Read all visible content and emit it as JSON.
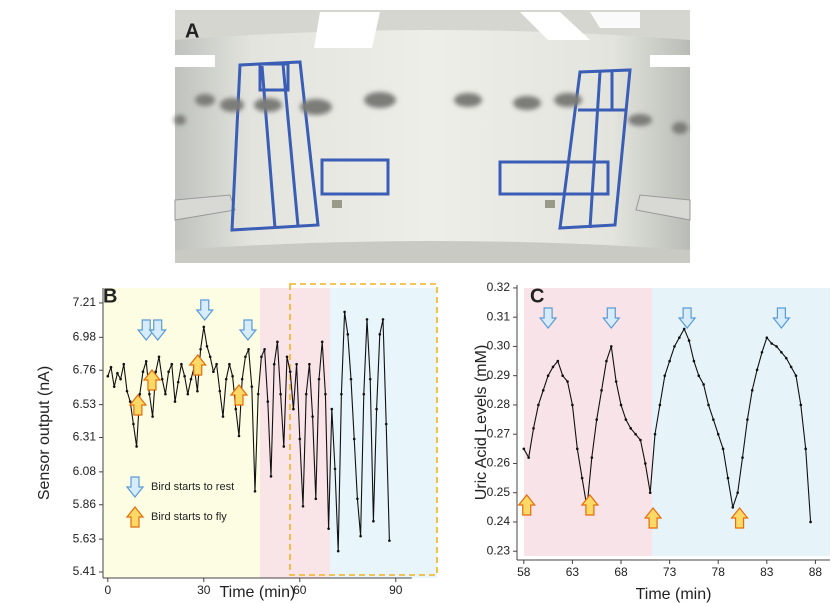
{
  "photo_label": "A",
  "chart_data": [
    {
      "type": "line",
      "panel_label": "B",
      "ylabel": "Sensor output (nA)",
      "xlabel": "Time (min)",
      "xlim": [
        -1.5,
        95
      ],
      "xticks": [
        0,
        30,
        60,
        90
      ],
      "ylim": [
        5.37,
        7.31
      ],
      "yticks": [
        7.21,
        6.98,
        6.76,
        6.53,
        6.31,
        6.08,
        5.86,
        5.63,
        5.41
      ],
      "x": [
        0,
        1,
        2,
        3,
        4,
        5,
        6,
        7,
        8,
        9,
        10,
        11,
        12,
        13,
        14,
        15,
        16,
        17,
        18,
        19,
        20,
        21,
        22,
        23,
        24,
        25,
        26,
        27,
        28,
        29,
        30,
        31,
        32,
        33,
        34,
        35,
        36,
        37,
        38,
        39,
        40,
        41,
        42,
        43,
        44,
        45,
        46,
        47,
        48,
        49,
        50,
        51,
        52,
        53,
        54,
        55,
        56,
        57,
        58,
        59,
        60,
        61,
        62,
        63,
        64,
        65,
        66,
        67,
        68,
        69,
        70,
        71,
        72,
        73,
        74,
        75,
        76,
        77,
        78,
        79,
        80,
        81,
        82,
        83,
        84,
        85,
        86,
        87,
        88
      ],
      "color": "#111111",
      "values": [
        6.72,
        6.78,
        6.65,
        6.74,
        6.7,
        6.8,
        6.62,
        6.55,
        6.4,
        6.25,
        6.6,
        6.75,
        6.82,
        6.6,
        6.45,
        6.75,
        6.85,
        6.7,
        6.6,
        6.75,
        6.8,
        6.55,
        6.68,
        6.8,
        6.72,
        6.6,
        6.7,
        6.78,
        6.62,
        6.9,
        7.05,
        6.92,
        6.85,
        6.75,
        6.8,
        6.62,
        6.45,
        6.7,
        6.8,
        6.72,
        6.5,
        6.32,
        6.7,
        6.85,
        6.9,
        6.65,
        5.95,
        6.6,
        6.85,
        6.9,
        6.55,
        6.05,
        6.8,
        6.95,
        6.6,
        6.25,
        6.85,
        6.75,
        6.5,
        6.8,
        6.3,
        5.85,
        6.6,
        6.8,
        6.45,
        5.9,
        6.7,
        6.95,
        6.6,
        5.7,
        6.5,
        6.1,
        5.55,
        6.6,
        7.15,
        7.0,
        6.7,
        6.3,
        5.9,
        5.65,
        6.6,
        7.1,
        6.7,
        5.75,
        6.5,
        7.0,
        7.1,
        6.4,
        5.62
      ],
      "arrows": [
        {
          "name": "Bird starts to rest",
          "color": "#5b9bd5",
          "x": [
            12,
            15.6,
            30.3,
            43.8
          ]
        },
        {
          "name": "Bird starts to fly",
          "color": "#e46c0a",
          "x": [
            9.4,
            13.8,
            28.1,
            41
          ]
        }
      ]
    },
    {
      "type": "line",
      "panel_label": "C",
      "ylabel": "Uric Acid Levels (mM)",
      "xlabel": "Time (min)",
      "xlim": [
        57.3,
        89.5
      ],
      "xticks": [
        58,
        63,
        68,
        73,
        78,
        83,
        88
      ],
      "ylim": [
        0.227,
        0.321
      ],
      "yticks": [
        0.32,
        0.31,
        {
          "value": 0.3,
          "label": "0.30"
        },
        0.29,
        0.28,
        0.27,
        0.26,
        0.25,
        0.24,
        0.23
      ],
      "x": [
        58,
        58.5,
        59,
        59.5,
        60,
        60.5,
        61,
        61.5,
        62,
        62.5,
        63,
        63.5,
        64,
        64.5,
        65,
        65.5,
        66,
        66.5,
        67,
        67.5,
        68,
        68.5,
        69,
        69.5,
        70,
        70.5,
        71,
        71.5,
        72,
        72.5,
        73,
        73.5,
        74,
        74.5,
        75,
        75.5,
        76,
        76.5,
        77,
        77.5,
        78,
        78.5,
        79,
        79.5,
        80,
        80.5,
        81,
        81.5,
        82,
        82.5,
        83,
        83.5,
        84,
        84.5,
        85,
        85.5,
        86,
        86.5,
        87,
        87.5
      ],
      "color": "#111111",
      "values": [
        0.265,
        0.262,
        0.272,
        0.28,
        0.285,
        0.29,
        0.293,
        0.295,
        0.29,
        0.288,
        0.28,
        0.265,
        0.255,
        0.245,
        0.262,
        0.275,
        0.285,
        0.295,
        0.3,
        0.288,
        0.28,
        0.275,
        0.272,
        0.27,
        0.268,
        0.26,
        0.25,
        0.27,
        0.28,
        0.29,
        0.295,
        0.3,
        0.303,
        0.306,
        0.302,
        0.295,
        0.29,
        0.287,
        0.28,
        0.275,
        0.27,
        0.265,
        0.255,
        0.245,
        0.25,
        0.262,
        0.275,
        0.285,
        0.292,
        0.298,
        0.303,
        0.301,
        0.3,
        0.298,
        0.296,
        0.293,
        0.29,
        0.28,
        0.265,
        0.24
      ],
      "arrows": [
        {
          "color": "#5b9bd5",
          "x": [
            60.5,
            67,
            74.8,
            84.5
          ]
        },
        {
          "color": "#e46c0a",
          "x": [
            58.3,
            64.8,
            71.3,
            80.2
          ]
        }
      ]
    }
  ]
}
